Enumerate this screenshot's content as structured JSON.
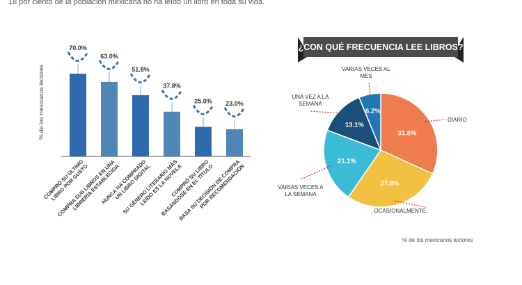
{
  "intro_text": "18 por ciento de la población mexicana no ha leído un libro en toda su vida.",
  "colors": {
    "bar_dark": "#2f6aac",
    "bar_light": "#4f86b6",
    "bracket": "#3a75b0",
    "banner": "#4b4b4b",
    "pie_orange": "#f07b4f",
    "pie_yellow": "#f2c142",
    "pie_cyan": "#3cbbd6",
    "pie_navy": "#1c4e7a",
    "pie_blue": "#1f78b4",
    "leader": "#cc2222"
  },
  "chart_data": [
    {
      "type": "bar",
      "ylabel": "% de los mexicanos lectores",
      "ylim": [
        0,
        100
      ],
      "categories": [
        [
          "COMPRÓ SU ÚLTIMO",
          "LIBRO POR GUSTO"
        ],
        [
          "COMPRA SUS LIBROS EN UNA",
          "LIBRERÍA ESTABLECIDA"
        ],
        [
          "NUNCA HA COMPRADO",
          "UN LIBRO DIGITAL"
        ],
        [
          "SU GÉNERO LITERARIO MÁS",
          "LEÍDO ES LA NOVELA"
        ],
        [
          "COMPRÓ SU LIBRO",
          "BASÁNDOSE EN EL TÍTULO"
        ],
        [
          "BASA SU DECISIÓN DE COMPRA",
          "POR RECOMENDACIÓN"
        ]
      ],
      "values": [
        70.0,
        63.0,
        51.8,
        37.8,
        25.0,
        23.0
      ],
      "value_labels": [
        "70.0%",
        "63.0%",
        "51.8%",
        "37.8%",
        "25.0%",
        "23.0%"
      ]
    },
    {
      "type": "pie",
      "title": "¿CON QUÉ FRECUENCIA LEE LIBROS?",
      "note": "% de los mexicanos lectores",
      "slices": [
        {
          "label": "DIARIO",
          "value": 31.8,
          "value_label": "31.8%"
        },
        {
          "label": "OCASIONALMENTE",
          "value": 27.8,
          "value_label": "27.8%"
        },
        {
          "label": "VARIAS VECES A LA SEMANA",
          "value": 21.1,
          "value_label": "21.1%"
        },
        {
          "label": "UNA VEZ A LA SEMANA",
          "value": 13.1,
          "value_label": "13.1%"
        },
        {
          "label": "VARIAS VECES AL MES",
          "value": 6.2,
          "value_label": "6.2%"
        }
      ]
    }
  ]
}
